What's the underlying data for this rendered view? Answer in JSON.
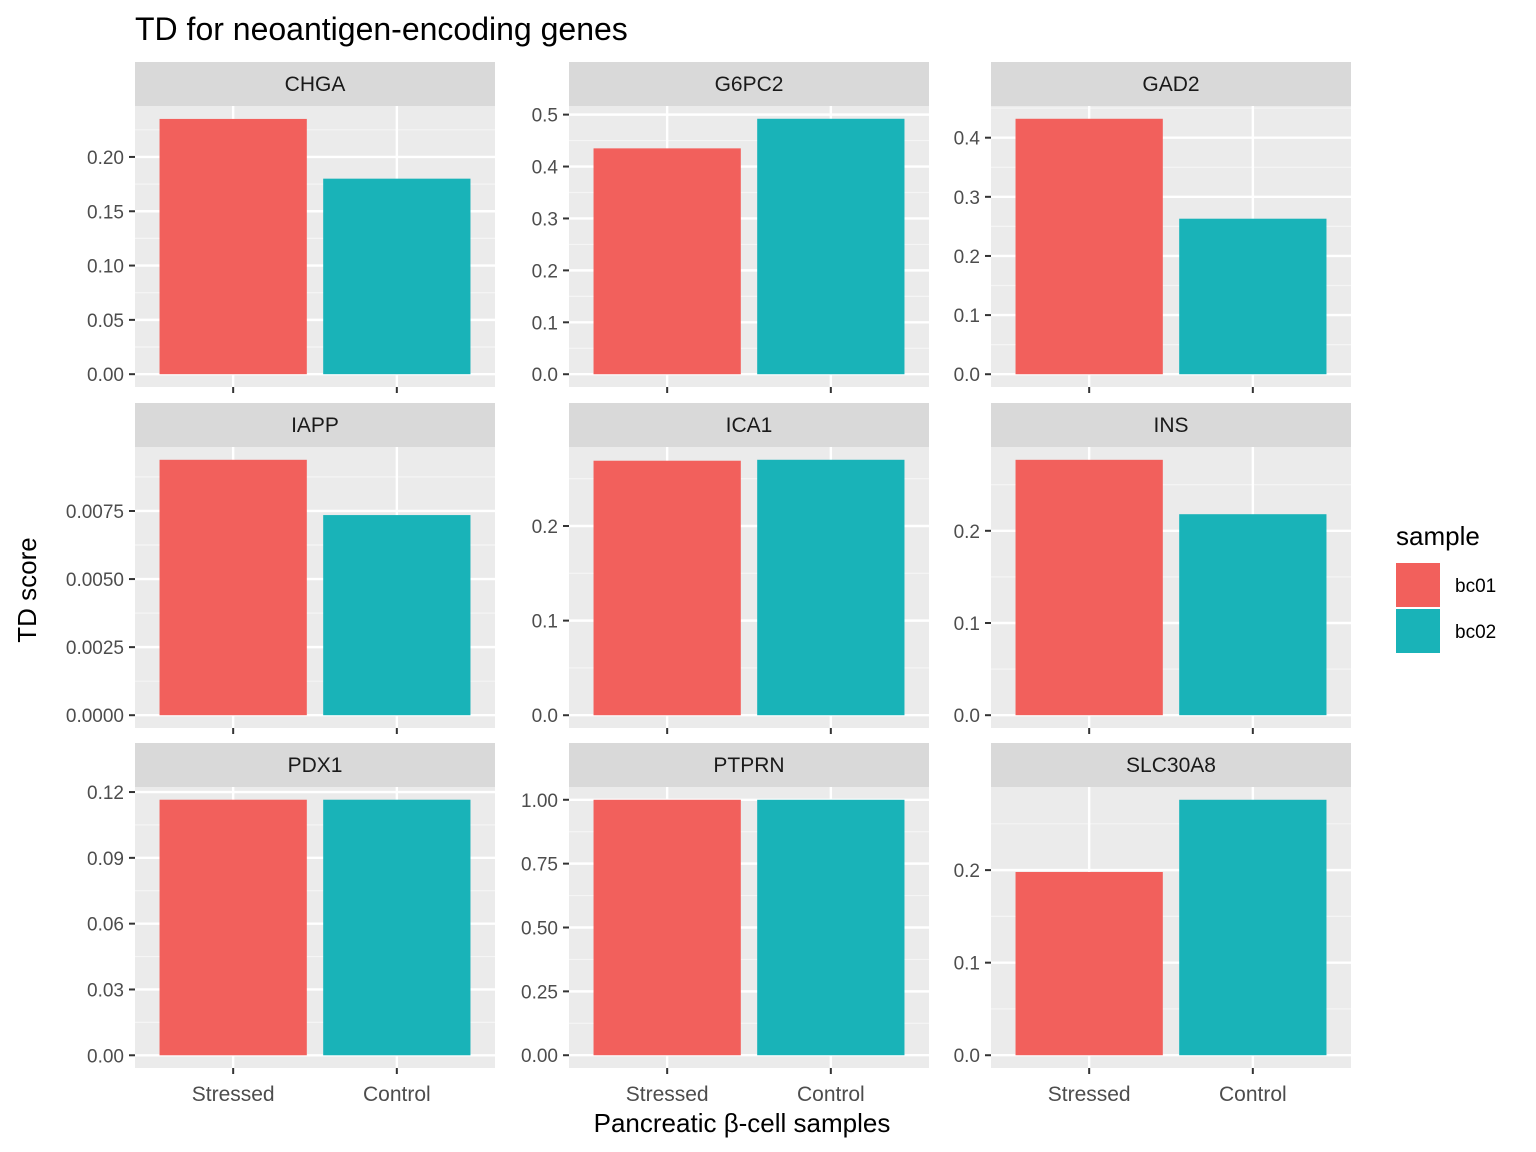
{
  "chart_data": {
    "type": "bar",
    "layout": "facet_wrap 3x3, independent y scales",
    "title": "TD for neoantigen-encoding genes",
    "xlabel": "Pancreatic β-cell samples",
    "ylabel": "TD score",
    "categories": [
      "Stressed",
      "Control"
    ],
    "legend": {
      "title": "sample",
      "placement": "right",
      "items": [
        {
          "label": "bc01",
          "color": "#F2605C"
        },
        {
          "label": "bc02",
          "color": "#19B3B8"
        }
      ]
    },
    "grid": true,
    "facets": [
      {
        "gene": "CHGA",
        "values": [
          0.235,
          0.18
        ],
        "ylim": [
          -0.0118,
          0.2469
        ],
        "ticks": [
          0.0,
          0.05,
          0.1,
          0.15,
          0.2
        ],
        "tick_labels": [
          "0.00",
          "0.05",
          "0.10",
          "0.15",
          "0.20"
        ]
      },
      {
        "gene": "G6PC2",
        "values": [
          0.435,
          0.492
        ],
        "ylim": [
          -0.0246,
          0.5166
        ],
        "ticks": [
          0.0,
          0.1,
          0.2,
          0.3,
          0.4,
          0.5
        ],
        "tick_labels": [
          "0.0",
          "0.1",
          "0.2",
          "0.3",
          "0.4",
          "0.5"
        ]
      },
      {
        "gene": "GAD2",
        "values": [
          0.432,
          0.263
        ],
        "ylim": [
          -0.0216,
          0.4536
        ],
        "ticks": [
          0.0,
          0.1,
          0.2,
          0.3,
          0.4
        ],
        "tick_labels": [
          "0.0",
          "0.1",
          "0.2",
          "0.3",
          "0.4"
        ]
      },
      {
        "gene": "IAPP",
        "values": [
          0.00938,
          0.00735
        ],
        "ylim": [
          -0.00047,
          0.00985
        ],
        "ticks": [
          0.0,
          0.0025,
          0.005,
          0.0075
        ],
        "tick_labels": [
          "0.0000",
          "0.0025",
          "0.0050",
          "0.0075"
        ]
      },
      {
        "gene": "ICA1",
        "values": [
          0.269,
          0.27
        ],
        "ylim": [
          -0.0135,
          0.2835
        ],
        "ticks": [
          0.0,
          0.1,
          0.2
        ],
        "tick_labels": [
          "0.0",
          "0.1",
          "0.2"
        ]
      },
      {
        "gene": "INS",
        "values": [
          0.277,
          0.218
        ],
        "ylim": [
          -0.0139,
          0.2909
        ],
        "ticks": [
          0.0,
          0.1,
          0.2
        ],
        "tick_labels": [
          "0.0",
          "0.1",
          "0.2"
        ]
      },
      {
        "gene": "PDX1",
        "values": [
          0.1165,
          0.1165
        ],
        "ylim": [
          -0.0058,
          0.1223
        ],
        "ticks": [
          0.0,
          0.03,
          0.06,
          0.09,
          0.12
        ],
        "tick_labels": [
          "0.00",
          "0.03",
          "0.06",
          "0.09",
          "0.12"
        ]
      },
      {
        "gene": "PTPRN",
        "values": [
          1.0,
          1.0
        ],
        "ylim": [
          -0.05,
          1.05
        ],
        "ticks": [
          0.0,
          0.25,
          0.5,
          0.75,
          1.0
        ],
        "tick_labels": [
          "0.00",
          "0.25",
          "0.50",
          "0.75",
          "1.00"
        ]
      },
      {
        "gene": "SLC30A8",
        "values": [
          0.198,
          0.276
        ],
        "ylim": [
          -0.0138,
          0.2898
        ],
        "ticks": [
          0.0,
          0.1,
          0.2
        ],
        "tick_labels": [
          "0.0",
          "0.1",
          "0.2"
        ]
      }
    ]
  }
}
